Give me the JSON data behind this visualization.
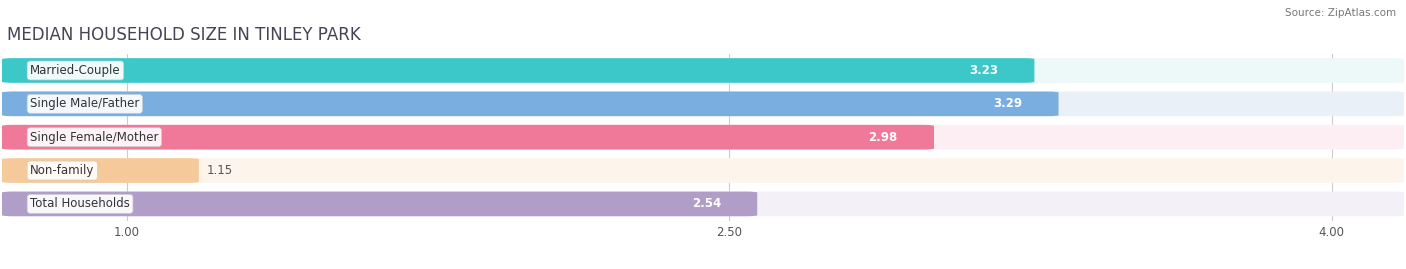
{
  "title": "MEDIAN HOUSEHOLD SIZE IN TINLEY PARK",
  "source": "Source: ZipAtlas.com",
  "categories": [
    "Married-Couple",
    "Single Male/Father",
    "Single Female/Mother",
    "Non-family",
    "Total Households"
  ],
  "values": [
    3.23,
    3.29,
    2.98,
    1.15,
    2.54
  ],
  "bar_colors": [
    "#3cc8c8",
    "#7baee0",
    "#f07898",
    "#f5c99a",
    "#b09ec8"
  ],
  "bar_bg_colors": [
    "#edf8f8",
    "#eaf0f8",
    "#fceef3",
    "#fdf5ec",
    "#f3f0f8"
  ],
  "xlim": [
    0.72,
    4.15
  ],
  "xstart": 0.72,
  "xticks": [
    1.0,
    2.5,
    4.0
  ],
  "title_fontsize": 12,
  "label_fontsize": 8.5,
  "value_fontsize": 8.5,
  "background_color": "#ffffff",
  "value_text_color_inside": "#ffffff",
  "value_text_color_outside": "#555555",
  "inside_threshold": 1.8
}
